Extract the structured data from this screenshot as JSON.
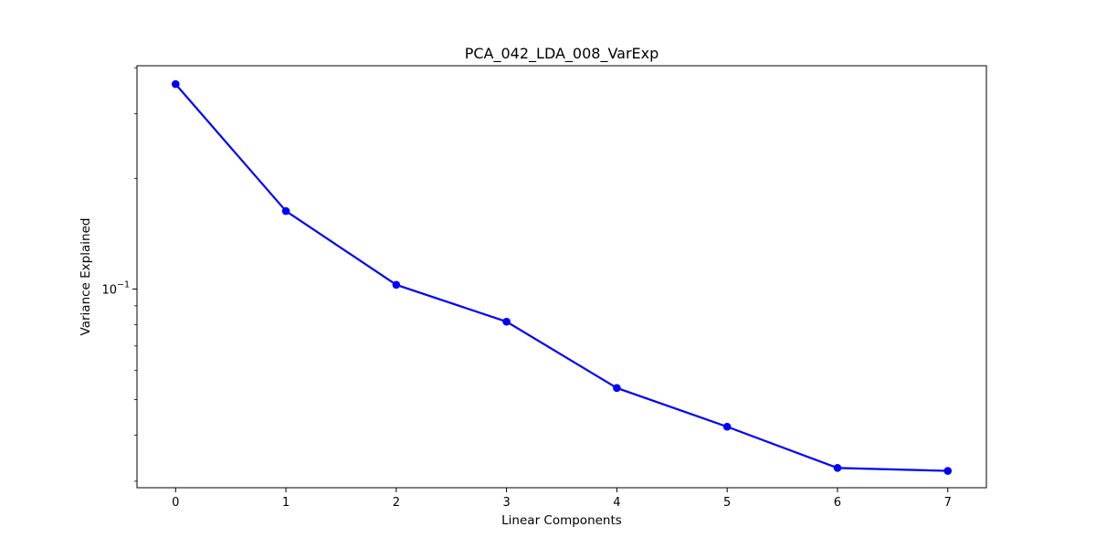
{
  "chart_data": {
    "type": "line",
    "title": "PCA_042_LDA_008_VarExp",
    "xlabel": "Linear Components",
    "ylabel": "Variance Explained",
    "y_scale": "log",
    "x": [
      0,
      1,
      2,
      3,
      4,
      5,
      6,
      7
    ],
    "series": [
      {
        "values": [
          0.361,
          0.163,
          0.1027,
          0.0815,
          0.0538,
          0.0422,
          0.0326,
          0.032
        ],
        "color": "#0000ff",
        "marker": "circle"
      }
    ],
    "xlim": [
      -0.35,
      7.35
    ],
    "ylim": [
      0.0288,
      0.405
    ],
    "x_ticks": [
      {
        "value": 0,
        "label": "0"
      },
      {
        "value": 1,
        "label": "1"
      },
      {
        "value": 2,
        "label": "2"
      },
      {
        "value": 3,
        "label": "3"
      },
      {
        "value": 4,
        "label": "4"
      },
      {
        "value": 5,
        "label": "5"
      },
      {
        "value": 6,
        "label": "6"
      },
      {
        "value": 7,
        "label": "7"
      }
    ],
    "y_major_ticks": [
      {
        "value": 0.1,
        "label_base": "10",
        "label_exp": "−1"
      }
    ],
    "y_minor_ticks": [
      0.03,
      0.04,
      0.05,
      0.06,
      0.07,
      0.08,
      0.09,
      0.2,
      0.3,
      0.4
    ],
    "grid": false,
    "legend": "none"
  }
}
